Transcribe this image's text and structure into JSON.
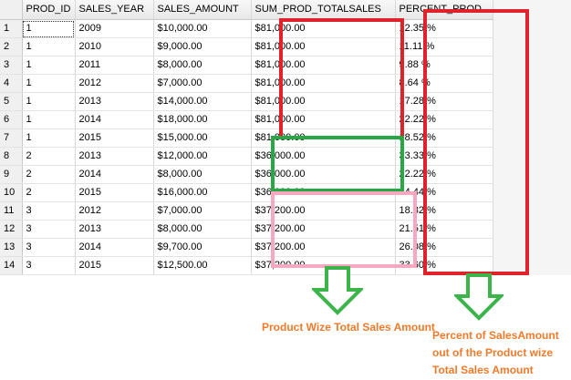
{
  "grid": {
    "columns": [
      "",
      "PROD_ID",
      "SALES_YEAR",
      "SALES_AMOUNT",
      "SUM_PROD_TOTALSALES",
      "PERCENT_PROD"
    ],
    "rows": [
      {
        "n": "1",
        "prod_id": "1",
        "year": "2009",
        "amount": "$10,000.00",
        "sum": "$81,000.00",
        "pct": "12.35 %"
      },
      {
        "n": "2",
        "prod_id": "1",
        "year": "2010",
        "amount": "$9,000.00",
        "sum": "$81,000.00",
        "pct": "11.11 %"
      },
      {
        "n": "3",
        "prod_id": "1",
        "year": "2011",
        "amount": "$8,000.00",
        "sum": "$81,000.00",
        "pct": "9.88 %"
      },
      {
        "n": "4",
        "prod_id": "1",
        "year": "2012",
        "amount": "$7,000.00",
        "sum": "$81,000.00",
        "pct": "8.64 %"
      },
      {
        "n": "5",
        "prod_id": "1",
        "year": "2013",
        "amount": "$14,000.00",
        "sum": "$81,000.00",
        "pct": "17.28 %"
      },
      {
        "n": "6",
        "prod_id": "1",
        "year": "2014",
        "amount": "$18,000.00",
        "sum": "$81,000.00",
        "pct": "22.22 %"
      },
      {
        "n": "7",
        "prod_id": "1",
        "year": "2015",
        "amount": "$15,000.00",
        "sum": "$81,000.00",
        "pct": "18.52 %"
      },
      {
        "n": "8",
        "prod_id": "2",
        "year": "2013",
        "amount": "$12,000.00",
        "sum": "$36,000.00",
        "pct": "33.33 %"
      },
      {
        "n": "9",
        "prod_id": "2",
        "year": "2014",
        "amount": "$8,000.00",
        "sum": "$36,000.00",
        "pct": "22.22 %"
      },
      {
        "n": "10",
        "prod_id": "2",
        "year": "2015",
        "amount": "$16,000.00",
        "sum": "$36,000.00",
        "pct": "44.44 %"
      },
      {
        "n": "11",
        "prod_id": "3",
        "year": "2012",
        "amount": "$7,000.00",
        "sum": "$37,200.00",
        "pct": "18.82 %"
      },
      {
        "n": "12",
        "prod_id": "3",
        "year": "2013",
        "amount": "$8,000.00",
        "sum": "$37,200.00",
        "pct": "21.51 %"
      },
      {
        "n": "13",
        "prod_id": "3",
        "year": "2014",
        "amount": "$9,700.00",
        "sum": "$37,200.00",
        "pct": "26.08 %"
      },
      {
        "n": "14",
        "prod_id": "3",
        "year": "2015",
        "amount": "$12,500.00",
        "sum": "$37,200.00",
        "pct": "33.60 %"
      }
    ]
  },
  "annotations": {
    "caption_sum": "Product Wize Total Sales Amount",
    "caption_pct": "Percent of SalesAmount out of the Product wize Total Sales Amount",
    "colors": {
      "red": "#e0232b",
      "green": "#27a844",
      "pink": "#f5a8c0",
      "arrow_green": "#3bb54a",
      "caption_orange": "#f07a2a"
    },
    "arrow_icon": "down-arrow-icon"
  }
}
